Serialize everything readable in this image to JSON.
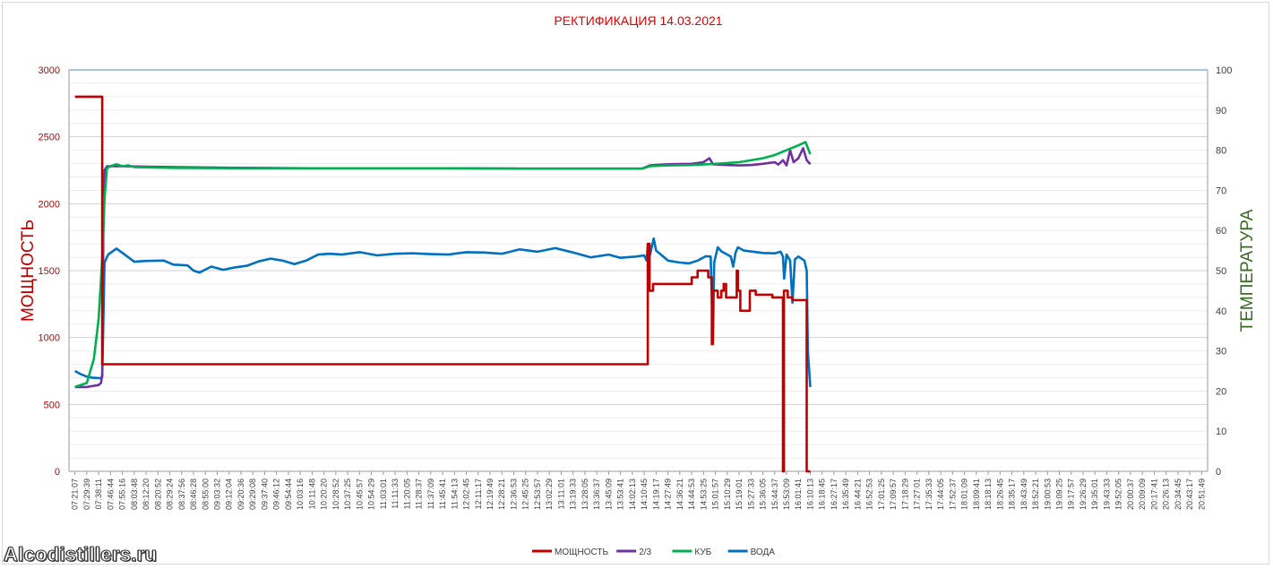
{
  "watermark": "Alcodistillers.ru",
  "chart_data": {
    "type": "line",
    "title": "РЕКТИФИКАЦИЯ 14.03.2021",
    "ylabel": "МОЩНОСТЬ",
    "y2label": "ТЕМПЕРАТУРА",
    "ylim": [
      0,
      3000
    ],
    "y2lim": [
      0,
      100
    ],
    "yticks": [
      0,
      500,
      1000,
      1500,
      2000,
      2500,
      3000
    ],
    "y2ticks": [
      0,
      10,
      20,
      30,
      40,
      50,
      60,
      70,
      80,
      90,
      100
    ],
    "grid": true,
    "legend_position": "bottom",
    "colors": {
      "power": "#c00000",
      "t23": "#7030a0",
      "cube": "#00b050",
      "water": "#0070c0",
      "title": "#e00000",
      "y2axis": "#376b1f"
    },
    "x_labels": [
      "07:21:07",
      "07:29:39",
      "07:38:11",
      "07:46:44",
      "07:55:16",
      "08:03:48",
      "08:12:20",
      "08:20:52",
      "08:29:24",
      "08:37:56",
      "08:46:28",
      "08:55:00",
      "09:03:32",
      "09:12:04",
      "09:20:36",
      "09:29:08",
      "09:37:40",
      "09:46:12",
      "09:54:44",
      "10:03:16",
      "10:11:48",
      "10:20:20",
      "10:28:52",
      "10:37:25",
      "10:45:57",
      "10:54:29",
      "11:03:01",
      "11:11:33",
      "11:20:05",
      "11:28:37",
      "11:37:09",
      "11:45:41",
      "11:54:13",
      "12:02:45",
      "12:11:17",
      "12:19:49",
      "12:28:21",
      "12:36:53",
      "12:45:25",
      "12:53:57",
      "13:02:29",
      "13:11:01",
      "13:19:33",
      "13:28:05",
      "13:36:37",
      "13:45:09",
      "13:53:41",
      "14:02:13",
      "14:10:45",
      "14:19:17",
      "14:27:49",
      "14:36:21",
      "14:44:53",
      "14:53:25",
      "15:01:57",
      "15:10:29",
      "15:19:01",
      "15:27:33",
      "15:36:05",
      "15:44:37",
      "15:53:09",
      "16:01:41",
      "16:10:13",
      "16:18:45",
      "16:27:17",
      "16:35:49",
      "16:44:21",
      "16:52:53",
      "17:01:25",
      "17:09:57",
      "17:18:29",
      "17:27:01",
      "17:35:33",
      "17:44:05",
      "17:52:37",
      "18:01:09",
      "18:09:41",
      "18:18:13",
      "18:26:45",
      "18:35:17",
      "18:43:49",
      "18:52:21",
      "19:00:53",
      "19:09:25",
      "19:17:57",
      "19:26:29",
      "19:35:01",
      "19:43:33",
      "19:52:05",
      "20:00:37",
      "20:09:09",
      "20:17:41",
      "20:26:13",
      "20:34:45",
      "20:43:17",
      "20:51:49"
    ],
    "series": [
      {
        "name": "МОЩНОСТЬ",
        "axis": "left",
        "color": "#c00000",
        "points": [
          [
            0,
            2800
          ],
          [
            2.3,
            2800
          ],
          [
            2.3,
            800
          ],
          [
            48.3,
            800
          ],
          [
            48.3,
            1700
          ],
          [
            48.45,
            1700
          ],
          [
            48.45,
            1350
          ],
          [
            48.75,
            1350
          ],
          [
            48.75,
            1400
          ],
          [
            52,
            1400
          ],
          [
            52,
            1450
          ],
          [
            52.5,
            1450
          ],
          [
            52.5,
            1500
          ],
          [
            53.4,
            1500
          ],
          [
            53.4,
            1450
          ],
          [
            53.7,
            1450
          ],
          [
            53.7,
            950
          ],
          [
            53.78,
            950
          ],
          [
            53.78,
            1350
          ],
          [
            54.2,
            1350
          ],
          [
            54.2,
            1300
          ],
          [
            54.5,
            1300
          ],
          [
            54.5,
            1350
          ],
          [
            54.7,
            1350
          ],
          [
            54.7,
            1400
          ],
          [
            54.9,
            1400
          ],
          [
            54.9,
            1300
          ],
          [
            55.8,
            1300
          ],
          [
            55.8,
            1500
          ],
          [
            55.9,
            1500
          ],
          [
            55.9,
            1350
          ],
          [
            56.1,
            1350
          ],
          [
            56.1,
            1200
          ],
          [
            56.9,
            1200
          ],
          [
            56.9,
            1350
          ],
          [
            57.4,
            1350
          ],
          [
            57.4,
            1320
          ],
          [
            58.8,
            1320
          ],
          [
            58.8,
            1300
          ],
          [
            59.7,
            1300
          ],
          [
            59.7,
            0
          ],
          [
            59.78,
            0
          ],
          [
            59.78,
            1350
          ],
          [
            60.1,
            1350
          ],
          [
            60.1,
            1300
          ],
          [
            60.5,
            1300
          ],
          [
            60.5,
            1280
          ],
          [
            61.7,
            1280
          ],
          [
            61.7,
            0
          ],
          [
            62,
            0
          ]
        ]
      },
      {
        "name": "2/3",
        "axis": "right",
        "color": "#7030a0",
        "points": [
          [
            0,
            21
          ],
          [
            1,
            21
          ],
          [
            2,
            21.5
          ],
          [
            2.2,
            22
          ],
          [
            2.3,
            24
          ],
          [
            2.4,
            60
          ],
          [
            2.5,
            75
          ],
          [
            2.7,
            76
          ],
          [
            4,
            76
          ],
          [
            8,
            75.8
          ],
          [
            14,
            75.6
          ],
          [
            20,
            75.5
          ],
          [
            26,
            75.5
          ],
          [
            32,
            75.5
          ],
          [
            38,
            75.4
          ],
          [
            44,
            75.4
          ],
          [
            47.8,
            75.4
          ],
          [
            48.5,
            76.2
          ],
          [
            50,
            76.5
          ],
          [
            52,
            76.6
          ],
          [
            53,
            77
          ],
          [
            53.5,
            78
          ],
          [
            53.8,
            76.5
          ],
          [
            55,
            76.3
          ],
          [
            56,
            76.2
          ],
          [
            57,
            76.3
          ],
          [
            58,
            76.6
          ],
          [
            59,
            77
          ],
          [
            59.3,
            76.4
          ],
          [
            59.7,
            77.5
          ],
          [
            60,
            76.2
          ],
          [
            60.3,
            80
          ],
          [
            60.6,
            77
          ],
          [
            61,
            78
          ],
          [
            61.4,
            80.5
          ],
          [
            61.7,
            77.5
          ],
          [
            62,
            76.5
          ]
        ]
      },
      {
        "name": "КУБ",
        "axis": "right",
        "color": "#00b050",
        "points": [
          [
            0,
            21
          ],
          [
            1,
            22
          ],
          [
            1.6,
            28
          ],
          [
            2.0,
            38
          ],
          [
            2.3,
            53
          ],
          [
            2.5,
            68
          ],
          [
            2.7,
            75.5
          ],
          [
            3.0,
            76
          ],
          [
            3.5,
            76.5
          ],
          [
            4,
            76
          ],
          [
            4.5,
            76.2
          ],
          [
            5,
            75.8
          ],
          [
            8,
            75.6
          ],
          [
            14,
            75.5
          ],
          [
            20,
            75.5
          ],
          [
            26,
            75.5
          ],
          [
            32,
            75.5
          ],
          [
            38,
            75.4
          ],
          [
            44,
            75.4
          ],
          [
            47.8,
            75.4
          ],
          [
            48.5,
            76
          ],
          [
            50,
            76.2
          ],
          [
            52,
            76.3
          ],
          [
            54,
            76.6
          ],
          [
            56,
            77
          ],
          [
            58,
            78
          ],
          [
            59,
            78.8
          ],
          [
            60,
            80
          ],
          [
            61,
            81.2
          ],
          [
            61.6,
            82
          ],
          [
            62,
            79
          ]
        ]
      },
      {
        "name": "ВОДА",
        "axis": "right",
        "color": "#0070c0",
        "points": [
          [
            0,
            25
          ],
          [
            0.5,
            24.2
          ],
          [
            1,
            23.6
          ],
          [
            1.5,
            23.3
          ],
          [
            2.2,
            23.2
          ],
          [
            2.3,
            23.6
          ],
          [
            2.5,
            52
          ],
          [
            2.8,
            54
          ],
          [
            3.5,
            55.5
          ],
          [
            4.2,
            54
          ],
          [
            5,
            52.2
          ],
          [
            6,
            52.4
          ],
          [
            7.5,
            52.5
          ],
          [
            8.3,
            51.5
          ],
          [
            9.5,
            51.3
          ],
          [
            10,
            50
          ],
          [
            10.5,
            49.5
          ],
          [
            11.5,
            51
          ],
          [
            12.5,
            50.2
          ],
          [
            13.5,
            50.8
          ],
          [
            14.5,
            51.2
          ],
          [
            15.5,
            52.3
          ],
          [
            16.5,
            53
          ],
          [
            17.5,
            52.5
          ],
          [
            18.5,
            51.6
          ],
          [
            19.5,
            52.5
          ],
          [
            20.5,
            54
          ],
          [
            21.5,
            54.2
          ],
          [
            22.5,
            54
          ],
          [
            24,
            54.6
          ],
          [
            25.5,
            53.8
          ],
          [
            27,
            54.2
          ],
          [
            28.5,
            54.3
          ],
          [
            30,
            54.1
          ],
          [
            31.5,
            54
          ],
          [
            33,
            54.6
          ],
          [
            34.5,
            54.5
          ],
          [
            36,
            54.2
          ],
          [
            37.5,
            55.3
          ],
          [
            39,
            54.7
          ],
          [
            40.5,
            55.6
          ],
          [
            42,
            54.5
          ],
          [
            43.5,
            53.3
          ],
          [
            45,
            54
          ],
          [
            46,
            53.2
          ],
          [
            47.3,
            53.5
          ],
          [
            48,
            53.8
          ],
          [
            48.2,
            52.5
          ],
          [
            48.3,
            56.5
          ],
          [
            48.5,
            54
          ],
          [
            48.8,
            58
          ],
          [
            49,
            55
          ],
          [
            50,
            52.5
          ],
          [
            51,
            52
          ],
          [
            51.8,
            51.8
          ],
          [
            52.5,
            52.5
          ],
          [
            53.2,
            53.6
          ],
          [
            53.6,
            53.5
          ],
          [
            53.8,
            32
          ],
          [
            53.9,
            52
          ],
          [
            54.2,
            55.8
          ],
          [
            54.5,
            54.8
          ],
          [
            55,
            54
          ],
          [
            55.3,
            53.5
          ],
          [
            55.5,
            51
          ],
          [
            55.7,
            54.5
          ],
          [
            55.9,
            55.8
          ],
          [
            56.4,
            55
          ],
          [
            57.2,
            54.7
          ],
          [
            58,
            54.4
          ],
          [
            59,
            54.3
          ],
          [
            59.5,
            54.7
          ],
          [
            59.7,
            53.5
          ],
          [
            59.8,
            48
          ],
          [
            60,
            54
          ],
          [
            60.3,
            52.5
          ],
          [
            60.5,
            42
          ],
          [
            60.7,
            52.8
          ],
          [
            61,
            53.5
          ],
          [
            61.5,
            52.5
          ],
          [
            61.7,
            50
          ],
          [
            61.8,
            30
          ],
          [
            62,
            21
          ]
        ]
      }
    ]
  }
}
